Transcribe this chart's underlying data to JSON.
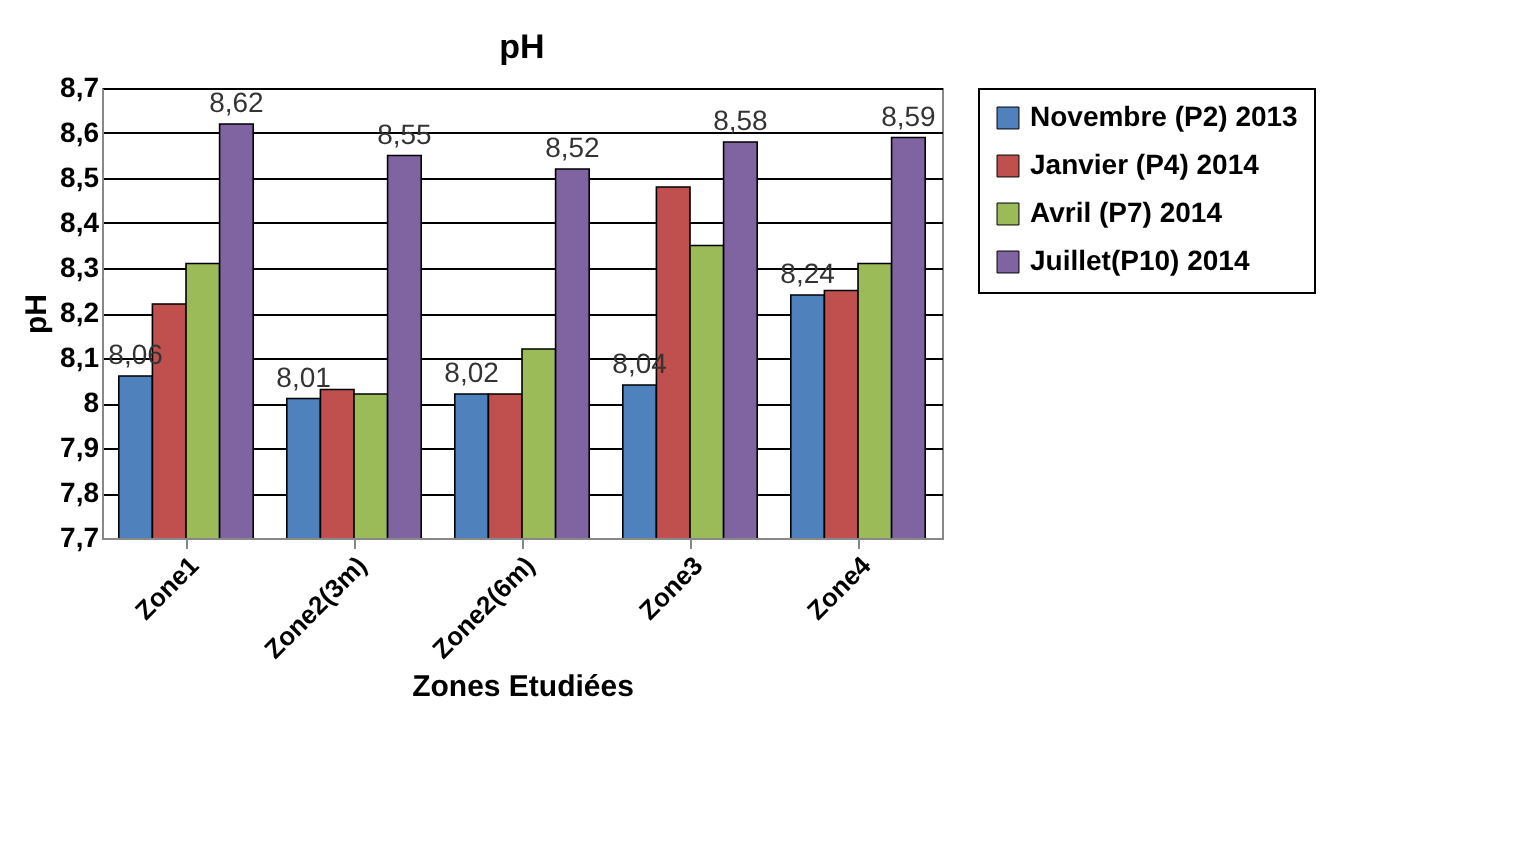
{
  "chart_data": {
    "type": "bar",
    "title": "pH",
    "xlabel": "Zones Etudiées",
    "ylabel": "pH",
    "categories": [
      "Zone1",
      "Zone2(3m)",
      "Zone2(6m)",
      "Zone3",
      "Zone4"
    ],
    "series": [
      {
        "name": "Novembre (P2) 2013",
        "color": "#4f81bd",
        "values": [
          8.06,
          8.01,
          8.02,
          8.04,
          8.24
        ],
        "value_labels": [
          "8,06",
          "8,01",
          "8,02",
          "8,04",
          "8,24"
        ]
      },
      {
        "name": "Janvier (P4) 2014",
        "color": "#c0504d",
        "values": [
          8.22,
          8.03,
          8.02,
          8.48,
          8.25
        ]
      },
      {
        "name": "Avril (P7) 2014",
        "color": "#9bbb59",
        "values": [
          8.31,
          8.02,
          8.12,
          8.35,
          8.31
        ]
      },
      {
        "name": "Juillet(P10) 2014",
        "color": "#8064a2",
        "values": [
          8.62,
          8.55,
          8.52,
          8.58,
          8.59
        ],
        "value_labels": [
          "8,62",
          "8,55",
          "8,52",
          "8,58",
          "8,59"
        ]
      }
    ],
    "ylim": [
      7.7,
      8.7
    ],
    "yticks": [
      {
        "value": 7.7,
        "label": "7,7"
      },
      {
        "value": 7.8,
        "label": "7,8"
      },
      {
        "value": 7.9,
        "label": "7,9"
      },
      {
        "value": 8,
        "label": "8"
      },
      {
        "value": 8.1,
        "label": "8,1"
      },
      {
        "value": 8.2,
        "label": "8,2"
      },
      {
        "value": 8.3,
        "label": "8,3"
      },
      {
        "value": 8.4,
        "label": "8,4"
      },
      {
        "value": 8.5,
        "label": "8,5"
      },
      {
        "value": 8.6,
        "label": "8,6"
      },
      {
        "value": 8.7,
        "label": "8,7"
      }
    ],
    "grid": "y",
    "legend": "right"
  }
}
